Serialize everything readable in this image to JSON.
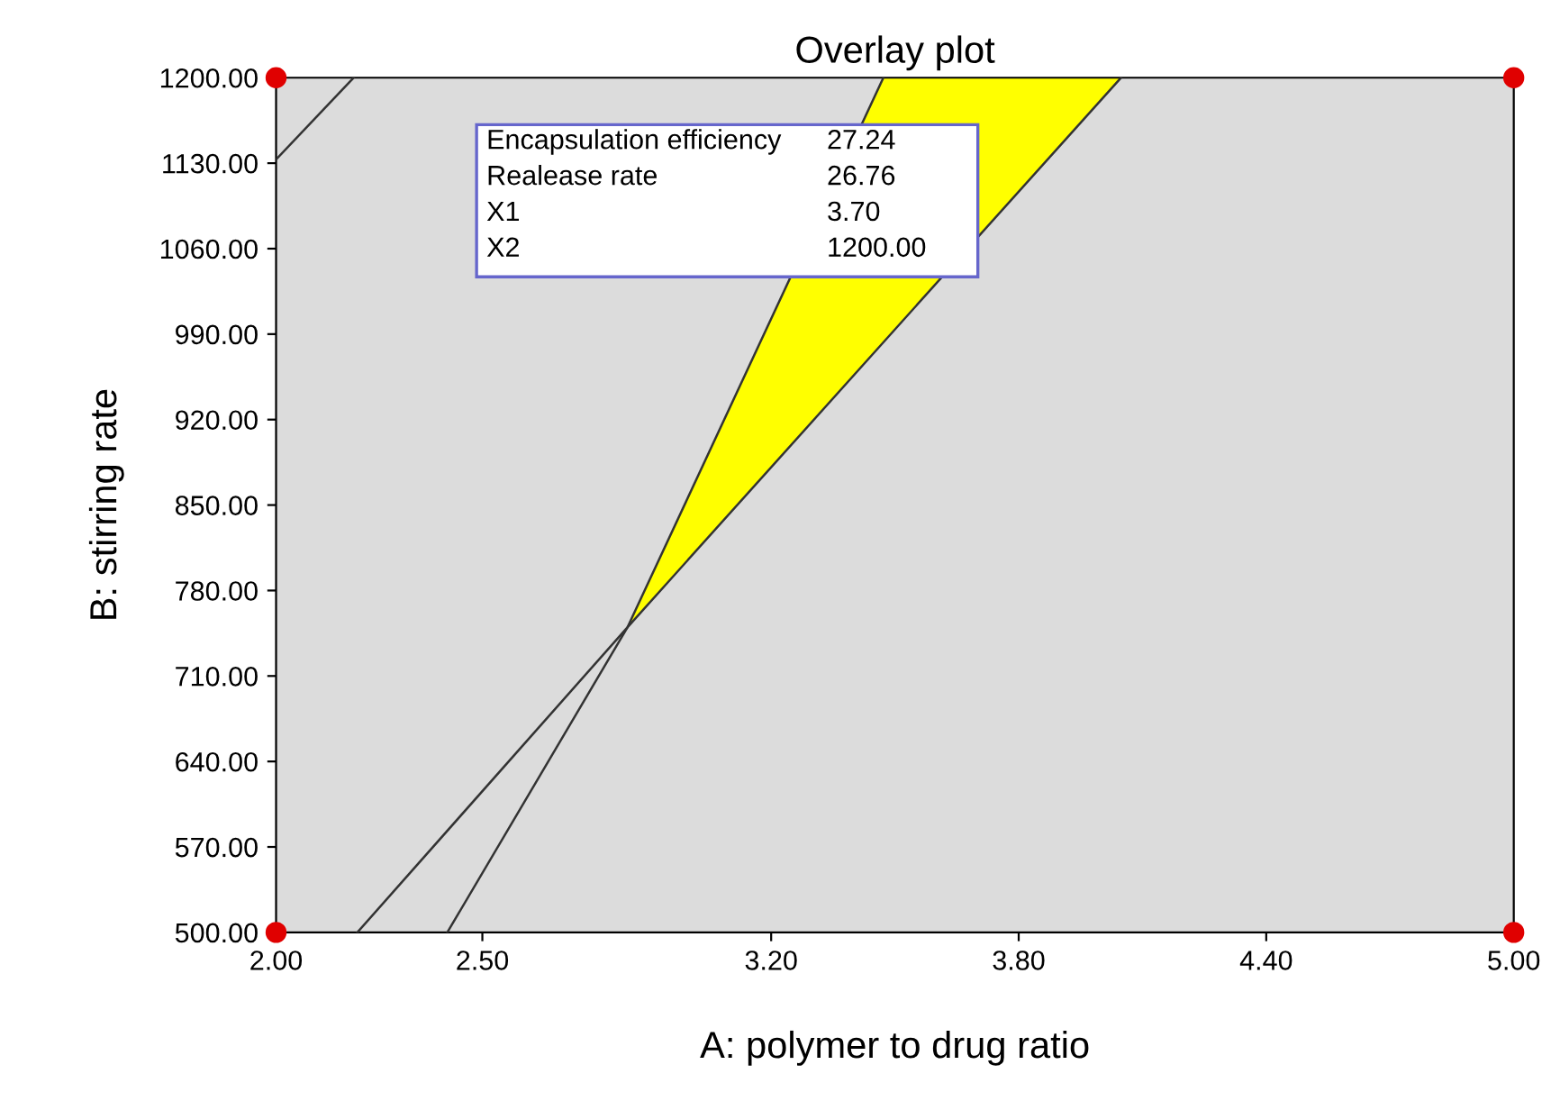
{
  "chart_data": {
    "type": "line",
    "title": "Overlay plot",
    "xlabel": "A: polymer to drug ratio",
    "ylabel": "B: stirring rate",
    "xlim": [
      2,
      5
    ],
    "ylim": [
      500,
      1200
    ],
    "xticks": [
      {
        "value": 2,
        "label": "2.00"
      },
      {
        "value": 2.5,
        "label": "2.50"
      },
      {
        "value": 3.2,
        "label": "3.20"
      },
      {
        "value": 3.8,
        "label": "3.80"
      },
      {
        "value": 4.4,
        "label": "4.40"
      },
      {
        "value": 5,
        "label": "5.00"
      }
    ],
    "yticks": [
      {
        "value": 500,
        "label": "500.00"
      },
      {
        "value": 570,
        "label": "570.00"
      },
      {
        "value": 640,
        "label": "640.00"
      },
      {
        "value": 710,
        "label": "710.00"
      },
      {
        "value": 780,
        "label": "780.00"
      },
      {
        "value": 850,
        "label": "850.00"
      },
      {
        "value": 920,
        "label": "920.00"
      },
      {
        "value": 990,
        "label": "990.00"
      },
      {
        "value": 1060,
        "label": "1060.00"
      },
      {
        "value": 1130,
        "label": "1130.00"
      },
      {
        "value": 1200,
        "label": "1200.00"
      }
    ],
    "grid": false,
    "series": [
      {
        "type": "area",
        "color": "#ffff00",
        "x": [
          2.852,
          3.472,
          4.048
        ],
        "values": [
          750,
          1200,
          1200
        ]
      },
      {
        "color": "#333333",
        "x": [
          2.197,
          2.852,
          4.048
        ],
        "values": [
          500,
          750,
          1200
        ]
      },
      {
        "color": "#333333",
        "x": [
          2.415,
          2.852,
          3.472
        ],
        "values": [
          500,
          750,
          1200
        ]
      },
      {
        "color": "#333333",
        "x": [
          2.0,
          2.188
        ],
        "values": [
          1133,
          1200
        ]
      },
      {
        "type": "scatter",
        "color": "#e00000",
        "marker": "circle",
        "x": [
          2,
          2,
          5,
          5
        ],
        "values": [
          500,
          1200,
          500,
          1200
        ]
      }
    ],
    "annotations": [
      "Encapsulation efficiency",
      "27.24",
      "Realease rate",
      "26.76",
      "X1",
      "3.70",
      "X2",
      "1200.00"
    ]
  }
}
